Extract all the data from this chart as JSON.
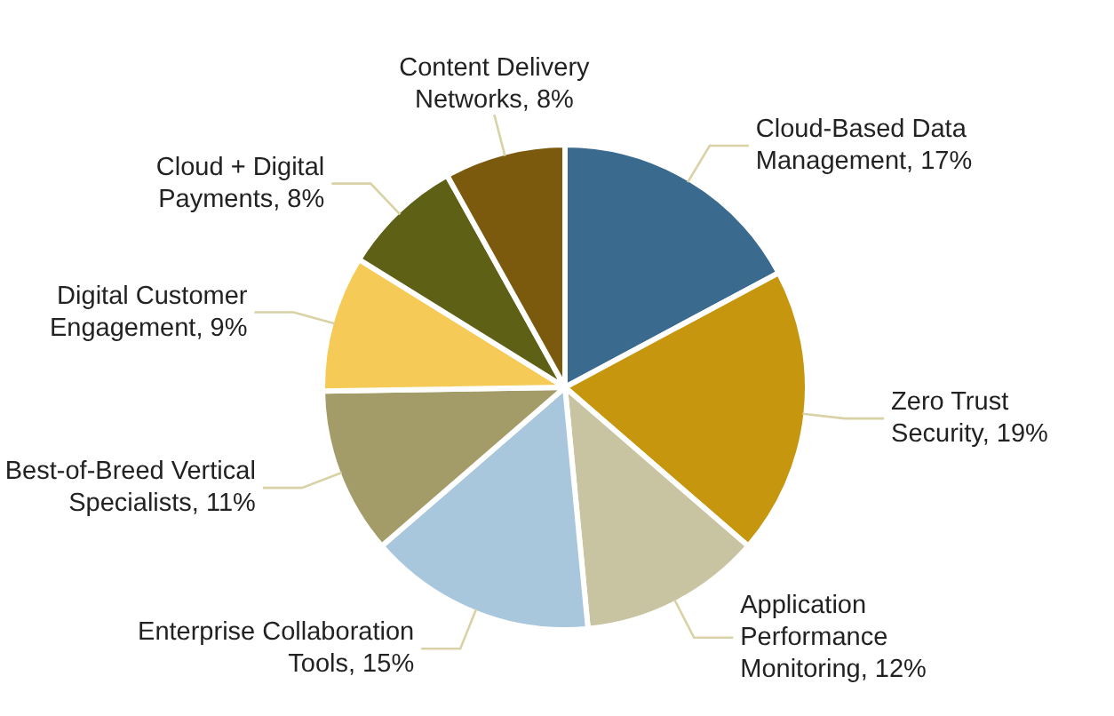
{
  "chart_data": {
    "type": "pie",
    "categories": [
      "Cloud-Based Data Management",
      "Zero Trust Security",
      "Application Performance Monitoring",
      "Enterprise Collaboration Tools",
      "Best-of-Breed Vertical Specialists",
      "Digital Customer Engagement",
      "Cloud + Digital Payments",
      "Content Delivery Networks"
    ],
    "values": [
      17,
      19,
      12,
      15,
      11,
      9,
      8,
      8
    ],
    "value_labels": [
      "17%",
      "19%",
      "12%",
      "15%",
      "11%",
      "9%",
      "8%",
      "8%"
    ],
    "colors": [
      "#3a6b8f",
      "#c6960f",
      "#c8c3a0",
      "#a8c6dc",
      "#a39c68",
      "#f5ca56",
      "#5e6115",
      "#7b5a0e"
    ],
    "legend": false
  }
}
